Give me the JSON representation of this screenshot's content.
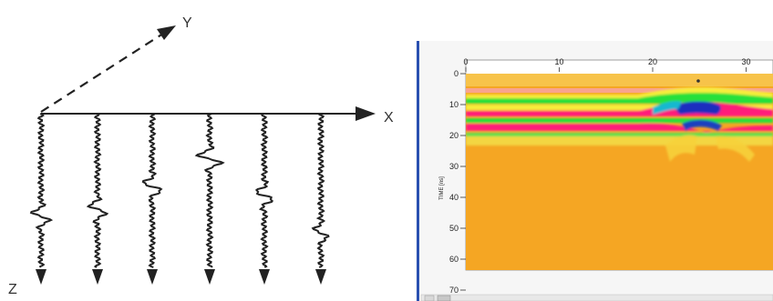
{
  "diagram": {
    "axis_labels": {
      "x": "X",
      "y": "Y",
      "z": "Z"
    },
    "trace_count": 6
  },
  "radargram": {
    "x_ticks": [
      "0",
      "10",
      "20",
      "30"
    ],
    "y_ticks": [
      "0",
      "10",
      "20",
      "30",
      "40",
      "50",
      "60",
      "70"
    ],
    "y_axis_label": "TIME [ns]",
    "colors": {
      "frame": "#2a50b0",
      "background": "#f5a623",
      "yellow": "#f7ee3a",
      "green": "#27e03a",
      "magenta": "#ff1f7a",
      "blue": "#1f2fbf"
    }
  }
}
